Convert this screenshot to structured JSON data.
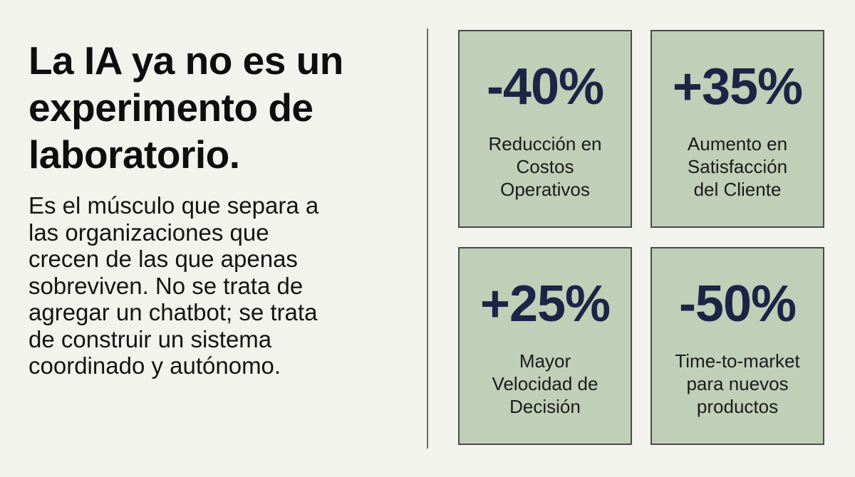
{
  "headline": "La IA ya no es un\nexperimento de\nlaboratorio.",
  "body": "Es el músculo que separa a\nlas organizaciones que\ncrecen de las que apenas\nsobreviven. No se trata de\nagregar un chatbot; se trata\nde construir un sistema\ncoordinado y autónomo.",
  "colors": {
    "background": "#f3f3ee",
    "card_fill": "#bfcfb8",
    "card_border": "#4a4a4a",
    "stat_value": "#1c2545",
    "text": "#111111"
  },
  "stats": [
    {
      "value": "-40%",
      "label": "Reducción en\nCostos\nOperativos"
    },
    {
      "value": "+35%",
      "label": "Aumento en\nSatisfacción\ndel Cliente"
    },
    {
      "value": "+25%",
      "label": "Mayor\nVelocidad de\nDecisión"
    },
    {
      "value": "-50%",
      "label": "Time-to-market\npara nuevos\nproductos"
    }
  ]
}
